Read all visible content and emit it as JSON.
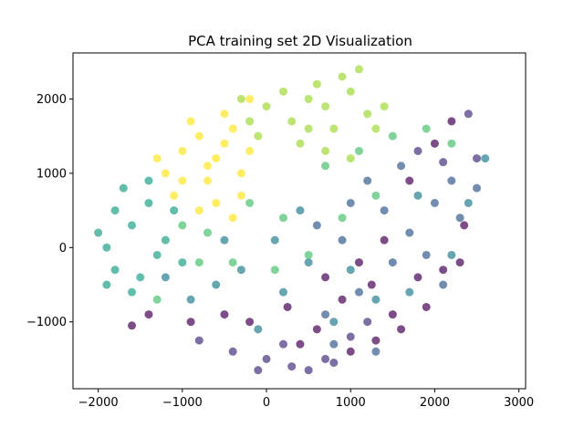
{
  "chart_data": {
    "type": "scatter",
    "title": "PCA training set 2D Visualization",
    "xlabel": "",
    "ylabel": "",
    "xlim": [
      -2300,
      3080
    ],
    "ylim": [
      -1900,
      2620
    ],
    "x_ticks": [
      -2000,
      -1000,
      0,
      1000,
      2000,
      3000
    ],
    "y_ticks": [
      -1000,
      0,
      1000,
      2000
    ],
    "x_tick_labels": [
      "−2000",
      "−1000",
      "0",
      "1000",
      "2000",
      "3000"
    ],
    "y_tick_labels": [
      "−1000",
      "0",
      "1000",
      "2000"
    ],
    "grid": false,
    "legend": "none",
    "marker_alpha": 0.7,
    "colormap": "viridis",
    "series": [
      {
        "color": "#440154",
        "points": [
          [
            1250,
            -500
          ],
          [
            1800,
            -400
          ],
          [
            900,
            -700
          ],
          [
            1500,
            -900
          ],
          [
            600,
            -1100
          ],
          [
            2100,
            -300
          ],
          [
            1100,
            -200
          ],
          [
            400,
            -1300
          ],
          [
            -200,
            -1000
          ],
          [
            1600,
            -1100
          ],
          [
            2300,
            -200
          ],
          [
            1900,
            -800
          ],
          [
            700,
            -400
          ],
          [
            -500,
            -900
          ],
          [
            1300,
            -1250
          ],
          [
            2000,
            1400
          ],
          [
            2200,
            1700
          ],
          [
            1700,
            900
          ],
          [
            2350,
            300
          ],
          [
            1000,
            -1400
          ],
          [
            -900,
            -1000
          ],
          [
            -1400,
            -900
          ],
          [
            -1600,
            -1050
          ],
          [
            250,
            -800
          ],
          [
            1400,
            100
          ]
        ]
      },
      {
        "color": "#46327e",
        "points": [
          [
            0,
            -1500
          ],
          [
            300,
            -1600
          ],
          [
            700,
            -1500
          ],
          [
            -400,
            -1400
          ],
          [
            1000,
            -1200
          ],
          [
            -800,
            -1250
          ],
          [
            200,
            -1300
          ],
          [
            500,
            -1650
          ],
          [
            1200,
            -1000
          ],
          [
            -100,
            -1650
          ],
          [
            2400,
            1800
          ],
          [
            2100,
            1150
          ],
          [
            1800,
            1300
          ],
          [
            2500,
            1200
          ],
          [
            800,
            -1550
          ]
        ]
      },
      {
        "color": "#365c8d",
        "points": [
          [
            1400,
            500
          ],
          [
            1700,
            200
          ],
          [
            2000,
            600
          ],
          [
            1200,
            900
          ],
          [
            900,
            100
          ],
          [
            2200,
            900
          ],
          [
            1500,
            -200
          ],
          [
            600,
            300
          ],
          [
            1100,
            -600
          ],
          [
            1900,
            -100
          ],
          [
            2300,
            400
          ],
          [
            1600,
            1100
          ],
          [
            1000,
            600
          ],
          [
            700,
            -900
          ],
          [
            2500,
            800
          ],
          [
            800,
            -1300
          ],
          [
            1300,
            -1400
          ],
          [
            2100,
            -500
          ]
        ]
      },
      {
        "color": "#277f8e",
        "points": [
          [
            200,
            -600
          ],
          [
            -300,
            -300
          ],
          [
            500,
            -200
          ],
          [
            -600,
            -500
          ],
          [
            100,
            100
          ],
          [
            -100,
            -1100
          ],
          [
            800,
            -1000
          ],
          [
            -900,
            -700
          ],
          [
            1300,
            -700
          ],
          [
            -1200,
            -400
          ],
          [
            400,
            500
          ],
          [
            1700,
            -600
          ],
          [
            -500,
            100
          ],
          [
            1000,
            -300
          ],
          [
            2200,
            -100
          ],
          [
            1800,
            700
          ],
          [
            2600,
            1200
          ],
          [
            2400,
            600
          ]
        ]
      },
      {
        "color": "#1fa187",
        "points": [
          [
            -1600,
            300
          ],
          [
            -1900,
            0
          ],
          [
            -1400,
            600
          ],
          [
            -1800,
            -300
          ],
          [
            -1200,
            100
          ],
          [
            -1700,
            800
          ],
          [
            -1500,
            -400
          ],
          [
            -2000,
            200
          ],
          [
            -1300,
            -100
          ],
          [
            -1600,
            -600
          ],
          [
            -1100,
            500
          ],
          [
            -1900,
            -500
          ],
          [
            -1400,
            900
          ],
          [
            -1000,
            -200
          ],
          [
            -1800,
            500
          ]
        ]
      },
      {
        "color": "#4ac16d",
        "points": [
          [
            -700,
            200
          ],
          [
            -400,
            -200
          ],
          [
            -1000,
            300
          ],
          [
            200,
            400
          ],
          [
            700,
            1100
          ],
          [
            1100,
            1300
          ],
          [
            1500,
            1500
          ],
          [
            -200,
            600
          ],
          [
            1900,
            1600
          ],
          [
            500,
            -100
          ],
          [
            2200,
            1400
          ],
          [
            -800,
            -200
          ],
          [
            1300,
            700
          ],
          [
            -1300,
            -700
          ],
          [
            100,
            -300
          ],
          [
            900,
            400
          ]
        ]
      },
      {
        "color": "#a0da39",
        "points": [
          [
            300,
            1700
          ],
          [
            700,
            1900
          ],
          [
            1000,
            2100
          ],
          [
            500,
            2000
          ],
          [
            0,
            1900
          ],
          [
            800,
            1600
          ],
          [
            1200,
            1800
          ],
          [
            -200,
            1700
          ],
          [
            600,
            2200
          ],
          [
            900,
            2300
          ],
          [
            400,
            1400
          ],
          [
            1100,
            2400
          ],
          [
            1400,
            1900
          ],
          [
            -300,
            2000
          ],
          [
            200,
            2100
          ],
          [
            700,
            1300
          ],
          [
            1300,
            1600
          ],
          [
            1000,
            1200
          ],
          [
            -100,
            1500
          ],
          [
            500,
            1600
          ]
        ]
      },
      {
        "color": "#fde725",
        "points": [
          [
            -800,
            1500
          ],
          [
            -600,
            1200
          ],
          [
            -1000,
            1300
          ],
          [
            -400,
            1600
          ],
          [
            -1200,
            1000
          ],
          [
            -700,
            900
          ],
          [
            -500,
            1800
          ],
          [
            -900,
            1700
          ],
          [
            -300,
            1000
          ],
          [
            -1100,
            700
          ],
          [
            -600,
            600
          ],
          [
            -200,
            1300
          ],
          [
            -1300,
            1200
          ],
          [
            -800,
            500
          ],
          [
            -400,
            400
          ],
          [
            -700,
            1100
          ],
          [
            -1000,
            900
          ],
          [
            -500,
            1400
          ],
          [
            -300,
            700
          ],
          [
            -200,
            2000
          ]
        ]
      }
    ]
  }
}
